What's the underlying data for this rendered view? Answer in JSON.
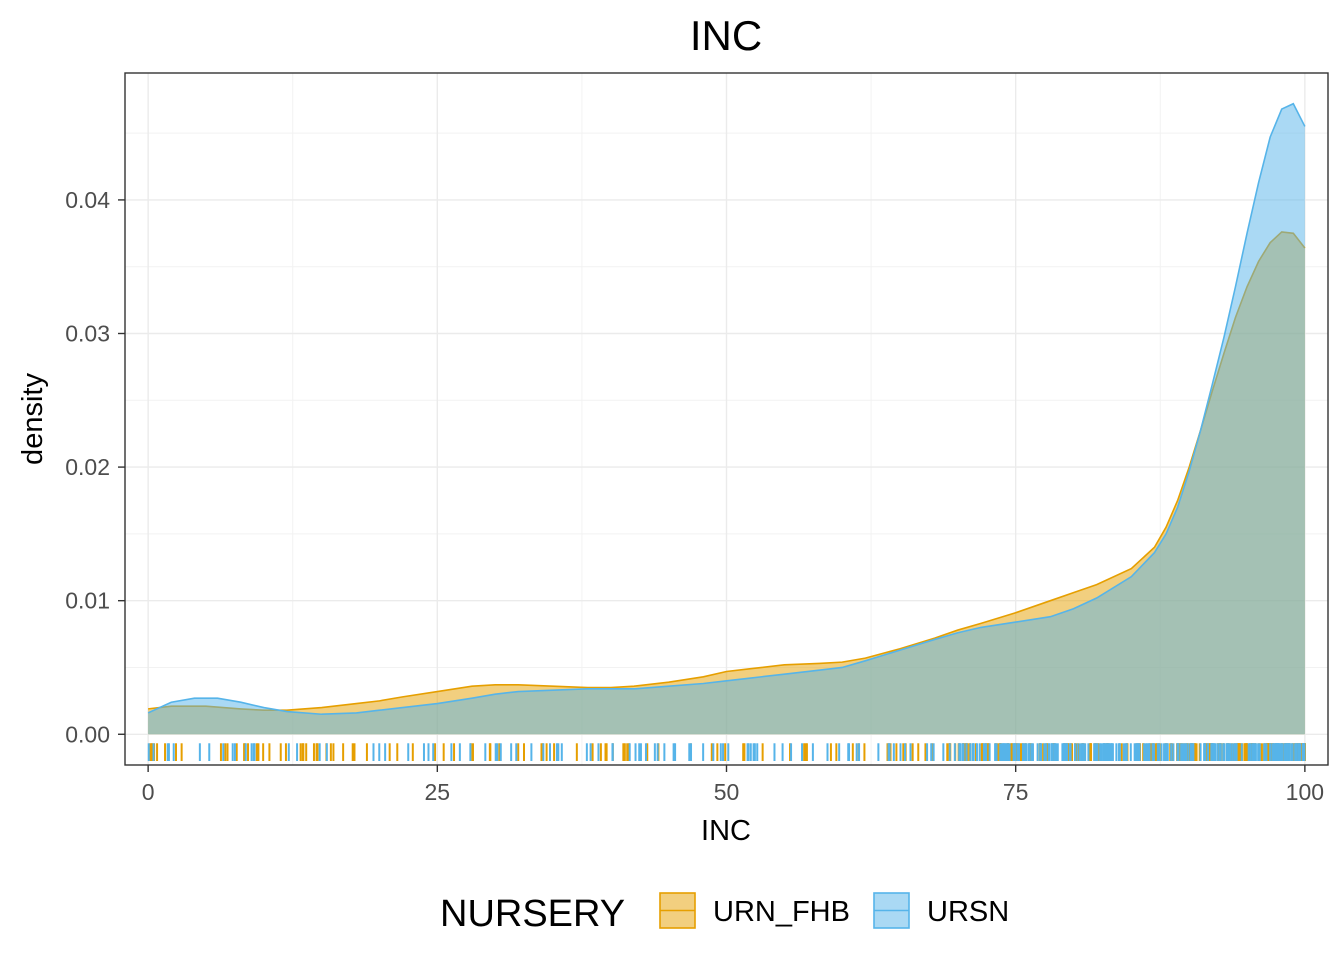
{
  "chart_data": {
    "type": "area",
    "title": "INC",
    "xlabel": "INC",
    "ylabel": "density",
    "xlim": [
      -2,
      102
    ],
    "ylim": [
      -0.0023,
      0.0495
    ],
    "x_ticks": [
      0,
      25,
      50,
      75,
      100
    ],
    "x_tick_labels": [
      "0",
      "25",
      "50",
      "75",
      "100"
    ],
    "y_ticks": [
      0.0,
      0.01,
      0.02,
      0.03,
      0.04
    ],
    "y_tick_labels": [
      "0.00",
      "0.01",
      "0.02",
      "0.03",
      "0.04"
    ],
    "grid": true,
    "legend": {
      "title": "NURSERY",
      "position": "bottom",
      "entries": [
        "URN_FHB",
        "URSN"
      ]
    },
    "colors": {
      "URN_FHB": "#E69F00",
      "URSN": "#56B4E9"
    },
    "series": [
      {
        "name": "URN_FHB",
        "x": [
          0,
          2,
          5,
          8,
          10,
          12,
          15,
          18,
          20,
          22,
          25,
          28,
          30,
          32,
          35,
          38,
          40,
          42,
          45,
          48,
          50,
          52,
          55,
          58,
          60,
          62,
          65,
          68,
          70,
          72,
          75,
          78,
          80,
          82,
          85,
          87,
          88,
          89,
          90,
          91,
          92,
          93,
          94,
          95,
          96,
          97,
          98,
          99,
          100
        ],
        "y": [
          0.0019,
          0.0021,
          0.0021,
          0.0019,
          0.0018,
          0.0018,
          0.002,
          0.0023,
          0.0025,
          0.0028,
          0.0032,
          0.0036,
          0.0037,
          0.0037,
          0.0036,
          0.0035,
          0.0035,
          0.0036,
          0.0039,
          0.0043,
          0.0047,
          0.0049,
          0.0052,
          0.0053,
          0.0054,
          0.0057,
          0.0064,
          0.0072,
          0.0078,
          0.0083,
          0.0091,
          0.01,
          0.0106,
          0.0112,
          0.0124,
          0.014,
          0.0155,
          0.0175,
          0.02,
          0.0228,
          0.0257,
          0.0285,
          0.0312,
          0.0335,
          0.0354,
          0.0368,
          0.0376,
          0.0375,
          0.0364
        ]
      },
      {
        "name": "URSN",
        "x": [
          0,
          2,
          4,
          6,
          8,
          10,
          12,
          15,
          18,
          20,
          22,
          25,
          28,
          30,
          32,
          35,
          38,
          40,
          42,
          45,
          48,
          50,
          52,
          55,
          58,
          60,
          62,
          65,
          68,
          70,
          72,
          75,
          78,
          80,
          82,
          85,
          87,
          88,
          89,
          90,
          91,
          92,
          93,
          94,
          95,
          96,
          97,
          98,
          99,
          100
        ],
        "y": [
          0.0016,
          0.0024,
          0.0027,
          0.0027,
          0.0024,
          0.002,
          0.0017,
          0.0015,
          0.0016,
          0.0018,
          0.002,
          0.0023,
          0.0027,
          0.003,
          0.0032,
          0.0033,
          0.0034,
          0.0034,
          0.0034,
          0.0036,
          0.0038,
          0.004,
          0.0042,
          0.0045,
          0.0048,
          0.005,
          0.0055,
          0.0063,
          0.0071,
          0.0076,
          0.008,
          0.0084,
          0.0088,
          0.0094,
          0.0102,
          0.0118,
          0.0136,
          0.015,
          0.017,
          0.0197,
          0.0228,
          0.0262,
          0.0297,
          0.0335,
          0.0375,
          0.0413,
          0.0447,
          0.0468,
          0.0472,
          0.0455
        ]
      }
    ]
  }
}
